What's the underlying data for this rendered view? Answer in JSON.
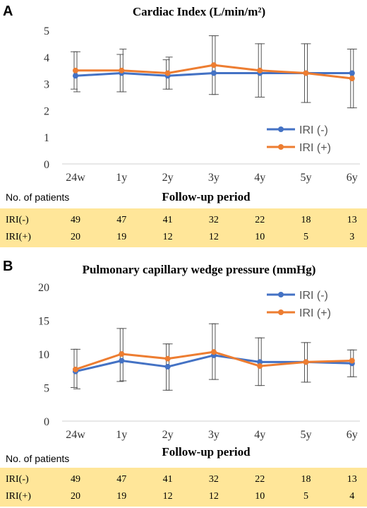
{
  "colors": {
    "series_neg": "#4472c4",
    "series_pos": "#ed7d31",
    "table_bg": "#ffe699",
    "error_bar": "#555555"
  },
  "chart_data": [
    {
      "panel": "A",
      "type": "line",
      "title": "Cardiac Index (L/min/m²)",
      "xlabel": "Follow-up period",
      "ylabel": "",
      "categories": [
        "24w",
        "1y",
        "2y",
        "3y",
        "4y",
        "5y",
        "6y"
      ],
      "ylim": [
        0,
        5
      ],
      "yticks": [
        0,
        1,
        2,
        3,
        4,
        5
      ],
      "legend_position": "right",
      "grid": false,
      "series": [
        {
          "name": "IRI (-)",
          "color": "#4472c4",
          "values": [
            3.3,
            3.4,
            3.3,
            3.4,
            3.4,
            3.4,
            3.4
          ],
          "error_low": [
            2.8,
            2.7,
            2.8,
            2.6,
            2.5,
            2.3,
            2.1
          ],
          "error_high": [
            4.2,
            4.1,
            3.9,
            4.8,
            4.5,
            4.5,
            4.3
          ]
        },
        {
          "name": "IRI (+)",
          "color": "#ed7d31",
          "values": [
            3.5,
            3.5,
            3.4,
            3.7,
            3.5,
            3.4,
            3.2
          ],
          "error_low": [
            2.7,
            2.7,
            2.8,
            2.6,
            2.5,
            2.3,
            2.1
          ],
          "error_high": [
            4.2,
            4.3,
            4.0,
            4.8,
            4.5,
            4.5,
            4.3
          ]
        }
      ],
      "table": {
        "caption": "No. of patients",
        "rows": [
          {
            "label": "IRI(-)",
            "values": [
              "49",
              "47",
              "41",
              "32",
              "22",
              "18",
              "13"
            ]
          },
          {
            "label": "IRI(+)",
            "values": [
              "20",
              "19",
              "12",
              "12",
              "10",
              "5",
              "3"
            ]
          }
        ]
      }
    },
    {
      "panel": "B",
      "type": "line",
      "title": "Pulmonary capillary wedge pressure (mmHg)",
      "xlabel": "Follow-up period",
      "ylabel": "",
      "categories": [
        "24w",
        "1y",
        "2y",
        "3y",
        "4y",
        "5y",
        "6y"
      ],
      "ylim": [
        0,
        20
      ],
      "yticks": [
        0,
        5,
        10,
        15,
        20
      ],
      "legend_position": "top-right",
      "grid": false,
      "series": [
        {
          "name": "IRI (-)",
          "color": "#4472c4",
          "values": [
            7.4,
            9.0,
            8.1,
            9.8,
            8.8,
            8.8,
            8.6
          ],
          "error_low": [
            5.0,
            5.9,
            4.6,
            6.2,
            5.3,
            5.8,
            6.6
          ],
          "error_high": [
            10.7,
            13.8,
            11.5,
            14.5,
            12.4,
            11.7,
            10.6
          ]
        },
        {
          "name": "IRI (+)",
          "color": "#ed7d31",
          "values": [
            7.7,
            10.0,
            9.3,
            10.3,
            8.2,
            8.8,
            9.0
          ],
          "error_low": [
            4.8,
            6.0,
            4.6,
            6.2,
            5.3,
            5.8,
            6.6
          ],
          "error_high": [
            10.7,
            13.8,
            11.5,
            14.5,
            12.4,
            11.7,
            10.6
          ]
        }
      ],
      "table": {
        "caption": "No. of patients",
        "rows": [
          {
            "label": "IRI(-)",
            "values": [
              "49",
              "47",
              "41",
              "32",
              "22",
              "18",
              "13"
            ]
          },
          {
            "label": "IRI(+)",
            "values": [
              "20",
              "19",
              "12",
              "12",
              "10",
              "5",
              "4"
            ]
          }
        ]
      }
    }
  ]
}
